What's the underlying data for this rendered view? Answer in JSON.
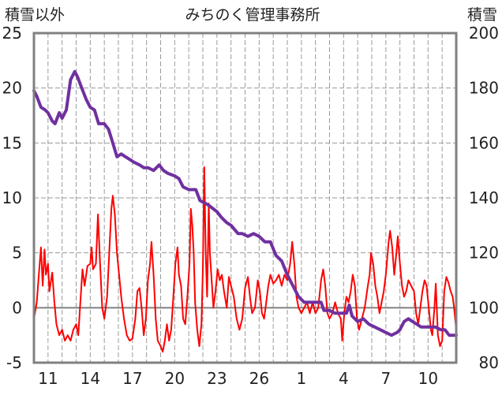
{
  "chart_data": {
    "type": "line",
    "title": "みちのく管理事務所",
    "left_axis_title": "積雪以外",
    "right_axis_title": "積雪",
    "left_ylim": [
      -5,
      25
    ],
    "left_yticks": [
      25,
      20,
      15,
      10,
      5,
      0,
      -5
    ],
    "right_ylim": [
      80,
      200
    ],
    "right_yticks": [
      200,
      180,
      160,
      140,
      120,
      100,
      80
    ],
    "x_tick_labels": [
      "11",
      "14",
      "17",
      "20",
      "23",
      "26",
      "1",
      "4",
      "7",
      "10"
    ],
    "x_tick_positions": [
      1,
      4,
      7,
      10,
      13,
      16,
      19,
      22,
      25,
      28
    ],
    "xlim": [
      0,
      30
    ],
    "grid": true,
    "colors": {
      "snow": "#7030A0",
      "other": "#FF0000",
      "zero_line": "#808080",
      "frame": "#808080"
    },
    "series": [
      {
        "axis": "right",
        "color": "#7030A0",
        "points": [
          [
            0,
            179
          ],
          [
            0.2,
            177
          ],
          [
            0.5,
            173
          ],
          [
            0.8,
            172
          ],
          [
            1.0,
            171
          ],
          [
            1.3,
            168
          ],
          [
            1.5,
            167
          ],
          [
            1.8,
            171
          ],
          [
            2.0,
            169
          ],
          [
            2.3,
            172
          ],
          [
            2.6,
            183
          ],
          [
            2.9,
            186
          ],
          [
            3.1,
            184
          ],
          [
            3.4,
            180
          ],
          [
            3.7,
            176
          ],
          [
            4.0,
            173
          ],
          [
            4.3,
            172
          ],
          [
            4.6,
            167
          ],
          [
            5.0,
            167
          ],
          [
            5.3,
            165
          ],
          [
            5.6,
            160
          ],
          [
            5.9,
            155
          ],
          [
            6.2,
            156
          ],
          [
            6.5,
            155
          ],
          [
            6.8,
            154
          ],
          [
            7.1,
            153
          ],
          [
            7.5,
            152
          ],
          [
            7.8,
            151
          ],
          [
            8.1,
            151
          ],
          [
            8.5,
            150
          ],
          [
            8.9,
            152
          ],
          [
            9.2,
            150
          ],
          [
            9.5,
            149
          ],
          [
            10.0,
            148
          ],
          [
            10.3,
            147
          ],
          [
            10.6,
            144
          ],
          [
            11.0,
            143
          ],
          [
            11.5,
            143
          ],
          [
            11.8,
            139
          ],
          [
            12.2,
            138
          ],
          [
            12.5,
            137
          ],
          [
            13.0,
            135
          ],
          [
            13.3,
            133
          ],
          [
            13.7,
            131
          ],
          [
            14.0,
            130
          ],
          [
            14.5,
            127
          ],
          [
            14.8,
            127
          ],
          [
            15.2,
            126
          ],
          [
            15.6,
            127
          ],
          [
            16.0,
            126
          ],
          [
            16.4,
            124
          ],
          [
            16.8,
            124
          ],
          [
            17.2,
            119
          ],
          [
            17.6,
            117
          ],
          [
            18.0,
            112
          ],
          [
            18.4,
            108
          ],
          [
            18.8,
            104
          ],
          [
            19.2,
            102
          ],
          [
            19.6,
            102
          ],
          [
            20.0,
            102
          ],
          [
            20.4,
            102
          ],
          [
            20.6,
            99
          ],
          [
            21.0,
            99
          ],
          [
            21.4,
            98
          ],
          [
            21.8,
            98
          ],
          [
            22.2,
            98
          ],
          [
            22.4,
            101
          ],
          [
            22.6,
            97
          ],
          [
            23.0,
            95
          ],
          [
            23.4,
            96
          ],
          [
            23.8,
            94
          ],
          [
            24.2,
            93
          ],
          [
            24.6,
            92
          ],
          [
            25.0,
            91
          ],
          [
            25.4,
            90
          ],
          [
            25.8,
            91
          ],
          [
            26.0,
            92
          ],
          [
            26.3,
            95
          ],
          [
            26.6,
            96
          ],
          [
            26.9,
            95
          ],
          [
            27.2,
            94
          ],
          [
            27.5,
            93
          ],
          [
            27.8,
            93
          ],
          [
            28.2,
            93
          ],
          [
            28.5,
            93
          ],
          [
            28.9,
            92
          ],
          [
            29.2,
            92
          ],
          [
            29.5,
            90
          ],
          [
            29.8,
            90
          ],
          [
            30.0,
            90
          ]
        ]
      },
      {
        "axis": "left",
        "color": "#FF0000",
        "points": [
          [
            0,
            -1
          ],
          [
            0.2,
            0.5
          ],
          [
            0.35,
            3
          ],
          [
            0.5,
            5.5
          ],
          [
            0.62,
            2
          ],
          [
            0.75,
            5.3
          ],
          [
            0.85,
            3
          ],
          [
            1.0,
            4
          ],
          [
            1.1,
            1.5
          ],
          [
            1.3,
            3.2
          ],
          [
            1.45,
            0.5
          ],
          [
            1.6,
            -1.5
          ],
          [
            1.8,
            -2.5
          ],
          [
            2.0,
            -2
          ],
          [
            2.2,
            -3
          ],
          [
            2.4,
            -2.5
          ],
          [
            2.6,
            -3
          ],
          [
            2.8,
            -2
          ],
          [
            3.0,
            -1.5
          ],
          [
            3.15,
            -2.5
          ],
          [
            3.3,
            0.5
          ],
          [
            3.45,
            3.5
          ],
          [
            3.6,
            2
          ],
          [
            3.8,
            3.8
          ],
          [
            4.0,
            4
          ],
          [
            4.1,
            5.5
          ],
          [
            4.2,
            3.5
          ],
          [
            4.4,
            4
          ],
          [
            4.55,
            8.5
          ],
          [
            4.7,
            4
          ],
          [
            4.85,
            0
          ],
          [
            5.0,
            -1
          ],
          [
            5.2,
            1
          ],
          [
            5.35,
            5
          ],
          [
            5.5,
            9
          ],
          [
            5.6,
            10.2
          ],
          [
            5.75,
            8.5
          ],
          [
            5.9,
            5
          ],
          [
            6.05,
            3
          ],
          [
            6.2,
            1
          ],
          [
            6.4,
            -1
          ],
          [
            6.6,
            -2.5
          ],
          [
            6.8,
            -3
          ],
          [
            7.0,
            -2.8
          ],
          [
            7.2,
            -1
          ],
          [
            7.35,
            1.5
          ],
          [
            7.5,
            1.8
          ],
          [
            7.65,
            0
          ],
          [
            7.8,
            -2.5
          ],
          [
            7.95,
            -1
          ],
          [
            8.1,
            2.5
          ],
          [
            8.25,
            4
          ],
          [
            8.35,
            6
          ],
          [
            8.5,
            3
          ],
          [
            8.65,
            -1
          ],
          [
            8.8,
            -3
          ],
          [
            9.0,
            -3.5
          ],
          [
            9.15,
            -4
          ],
          [
            9.3,
            -3
          ],
          [
            9.45,
            -1.5
          ],
          [
            9.6,
            -3
          ],
          [
            9.75,
            -2
          ],
          [
            9.9,
            1
          ],
          [
            10.05,
            4
          ],
          [
            10.2,
            5.5
          ],
          [
            10.3,
            3
          ],
          [
            10.45,
            2
          ],
          [
            10.6,
            -1
          ],
          [
            10.75,
            -1.5
          ],
          [
            10.9,
            1
          ],
          [
            11.05,
            4
          ],
          [
            11.15,
            9
          ],
          [
            11.25,
            7.5
          ],
          [
            11.35,
            5
          ],
          [
            11.45,
            0.5
          ],
          [
            11.6,
            -2
          ],
          [
            11.75,
            -3.5
          ],
          [
            11.9,
            -1.5
          ],
          [
            12.0,
            3.5
          ],
          [
            12.1,
            12.8
          ],
          [
            12.2,
            5
          ],
          [
            12.3,
            1
          ],
          [
            12.42,
            9.5
          ],
          [
            12.5,
            5
          ],
          [
            12.6,
            3
          ],
          [
            12.75,
            0
          ],
          [
            12.9,
            1.5
          ],
          [
            13.05,
            3.5
          ],
          [
            13.2,
            2.5
          ],
          [
            13.35,
            3
          ],
          [
            13.5,
            1.5
          ],
          [
            13.7,
            0
          ],
          [
            13.85,
            2.8
          ],
          [
            14.0,
            2
          ],
          [
            14.2,
            1
          ],
          [
            14.4,
            -1
          ],
          [
            14.6,
            -2
          ],
          [
            14.8,
            -1
          ],
          [
            15.0,
            1.8
          ],
          [
            15.2,
            2.8
          ],
          [
            15.35,
            1
          ],
          [
            15.5,
            -0.5
          ],
          [
            15.7,
            0
          ],
          [
            15.9,
            2.5
          ],
          [
            16.05,
            1.5
          ],
          [
            16.2,
            -0.5
          ],
          [
            16.35,
            -1
          ],
          [
            16.5,
            0.5
          ],
          [
            16.65,
            2
          ],
          [
            16.8,
            3
          ],
          [
            17.0,
            2.2
          ],
          [
            17.2,
            2.5
          ],
          [
            17.4,
            3
          ],
          [
            17.6,
            2
          ],
          [
            17.8,
            3
          ],
          [
            18.0,
            2.5
          ],
          [
            18.2,
            4
          ],
          [
            18.35,
            6
          ],
          [
            18.5,
            4
          ],
          [
            18.65,
            1
          ],
          [
            18.8,
            0
          ],
          [
            19.0,
            -0.5
          ],
          [
            19.2,
            0
          ],
          [
            19.4,
            0.5
          ],
          [
            19.6,
            -0.5
          ],
          [
            19.8,
            0.5
          ],
          [
            20.0,
            -0.5
          ],
          [
            20.2,
            0
          ],
          [
            20.4,
            2.5
          ],
          [
            20.55,
            3.5
          ],
          [
            20.7,
            2
          ],
          [
            20.85,
            -0.5
          ],
          [
            21.0,
            -1
          ],
          [
            21.2,
            -0.5
          ],
          [
            21.4,
            0.5
          ],
          [
            21.6,
            -0.5
          ],
          [
            21.8,
            -1
          ],
          [
            21.9,
            -3
          ],
          [
            22.05,
            -0.5
          ],
          [
            22.2,
            1
          ],
          [
            22.35,
            0.5
          ],
          [
            22.5,
            1.5
          ],
          [
            22.65,
            3
          ],
          [
            22.8,
            2
          ],
          [
            22.95,
            -1
          ],
          [
            23.1,
            -2
          ],
          [
            23.3,
            -1
          ],
          [
            23.5,
            0
          ],
          [
            23.7,
            1.8
          ],
          [
            23.85,
            3
          ],
          [
            23.95,
            5
          ],
          [
            24.1,
            4
          ],
          [
            24.25,
            2
          ],
          [
            24.4,
            1
          ],
          [
            24.55,
            -0.5
          ],
          [
            24.7,
            0.5
          ],
          [
            24.85,
            1.5
          ],
          [
            25.0,
            3
          ],
          [
            25.1,
            4.5
          ],
          [
            25.2,
            6
          ],
          [
            25.3,
            7
          ],
          [
            25.45,
            5.5
          ],
          [
            25.6,
            3
          ],
          [
            25.75,
            5
          ],
          [
            25.85,
            6.5
          ],
          [
            26.0,
            4
          ],
          [
            26.15,
            2
          ],
          [
            26.3,
            1
          ],
          [
            26.45,
            1.5
          ],
          [
            26.6,
            2.5
          ],
          [
            26.8,
            2
          ],
          [
            27.0,
            1.5
          ],
          [
            27.15,
            -0.5
          ],
          [
            27.3,
            -1.5
          ],
          [
            27.45,
            0
          ],
          [
            27.6,
            1.5
          ],
          [
            27.75,
            2.5
          ],
          [
            27.9,
            2
          ],
          [
            28.05,
            0
          ],
          [
            28.2,
            -2
          ],
          [
            28.3,
            -2.5
          ],
          [
            28.45,
            0
          ],
          [
            28.55,
            2.2
          ],
          [
            28.7,
            -2.5
          ],
          [
            28.85,
            -3.5
          ],
          [
            29.0,
            -3
          ],
          [
            29.15,
            1.5
          ],
          [
            29.3,
            2.8
          ],
          [
            29.45,
            2.3
          ],
          [
            29.6,
            1.5
          ],
          [
            29.75,
            1
          ],
          [
            29.85,
            0
          ],
          [
            30.0,
            -2
          ]
        ]
      }
    ]
  }
}
